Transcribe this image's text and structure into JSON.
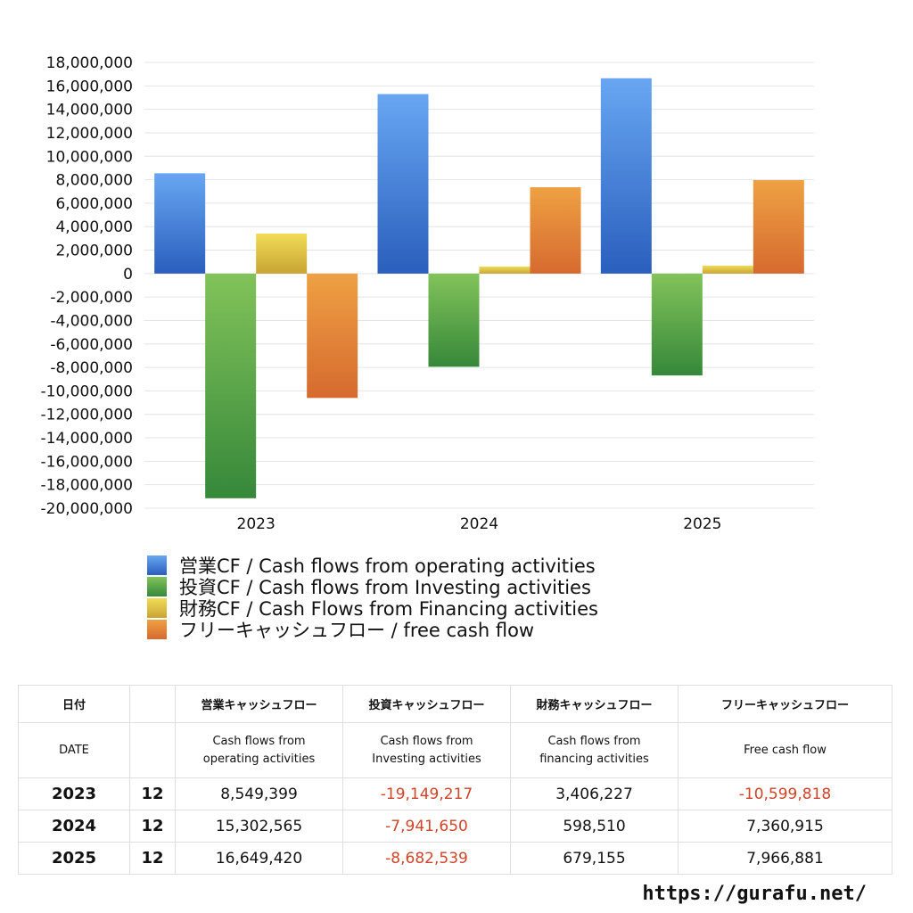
{
  "chart_data": {
    "type": "bar",
    "categories": [
      "2023",
      "2024",
      "2025"
    ],
    "series": [
      {
        "name": "営業CF / Cash flows from operating activities",
        "values": [
          8549399,
          15302565,
          16649420
        ]
      },
      {
        "name": "投資CF / Cash flows from Investing activities",
        "values": [
          -19149217,
          -7941650,
          -8682539
        ]
      },
      {
        "name": "財務CF / Cash Flows from Financing activities",
        "values": [
          3406227,
          598510,
          679155
        ]
      },
      {
        "name": "フリーキャッシュフロー / free cash flow",
        "values": [
          -10599818,
          7360915,
          7966881
        ]
      }
    ],
    "ylim": [
      -20000000,
      18000000
    ],
    "yticks": [
      "18,000,000",
      "16,000,000",
      "14,000,000",
      "12,000,000",
      "10,000,000",
      "8,000,000",
      "6,000,000",
      "4,000,000",
      "2,000,000",
      "0",
      "-2,000,000",
      "-4,000,000",
      "-6,000,000",
      "-8,000,000",
      "-10,000,000",
      "-12,000,000",
      "-14,000,000",
      "-16,000,000",
      "-18,000,000",
      "-20,000,000"
    ],
    "grid": true,
    "legend_position": "bottom",
    "colors": {
      "operating": [
        "#68a6f2",
        "#2a5fbd"
      ],
      "investing": [
        "#82c35a",
        "#36883a"
      ],
      "financing": [
        "#f1dc57",
        "#c8a434"
      ],
      "free": [
        "#eea143",
        "#d66a2f"
      ]
    }
  },
  "table": {
    "headers_jp": [
      "日付",
      "",
      "営業キャッシュフロー",
      "投資キャッシュフロー",
      "財務キャッシュフロー",
      "フリーキャッシュフロー"
    ],
    "headers_en": [
      "DATE",
      "",
      "Cash flows from",
      "Cash flows from",
      "Cash flows from",
      "Free cash flow"
    ],
    "headers_en2": [
      "",
      "",
      "operating activities",
      "Investing activities",
      "financing activities",
      ""
    ],
    "rows": [
      {
        "year": "2023",
        "month": "12",
        "operating": "8,549,399",
        "investing": "-19,149,217",
        "financing": "3,406,227",
        "free": "-10,599,818"
      },
      {
        "year": "2024",
        "month": "12",
        "operating": "15,302,565",
        "investing": "-7,941,650",
        "financing": "598,510",
        "free": "7,360,915"
      },
      {
        "year": "2025",
        "month": "12",
        "operating": "16,649,420",
        "investing": "-8,682,539",
        "financing": "679,155",
        "free": "7,966,881"
      }
    ]
  },
  "footer": {
    "url": "https://gurafu.net/"
  }
}
